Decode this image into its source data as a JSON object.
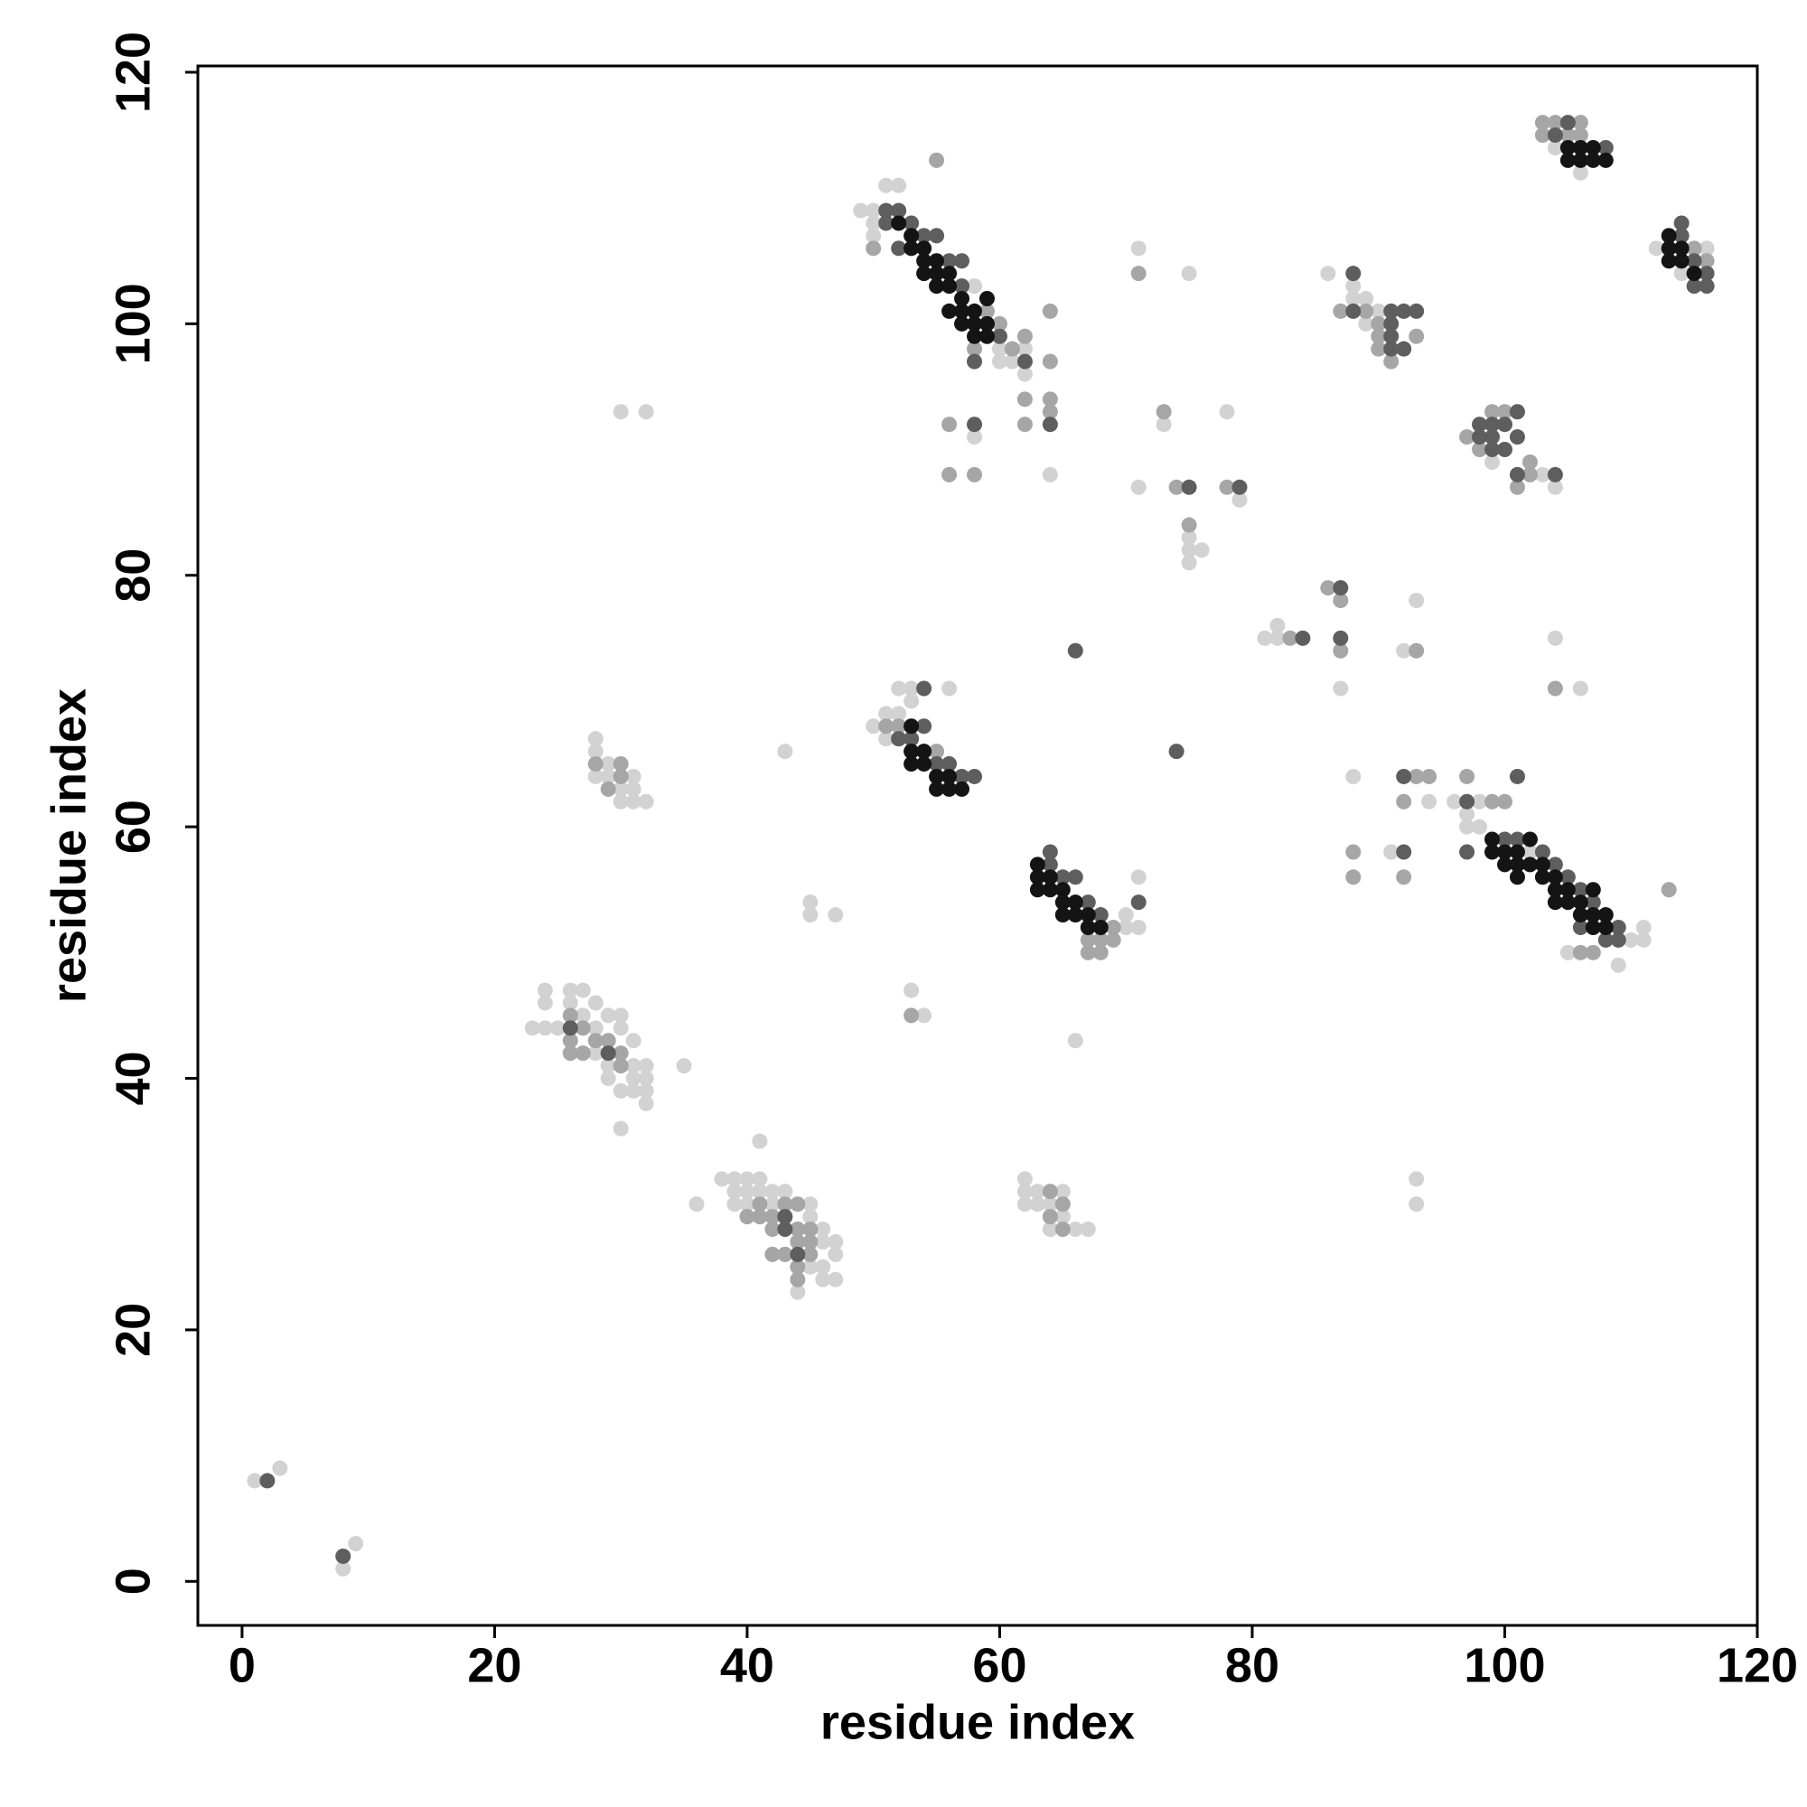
{
  "chart_data": {
    "type": "scatter",
    "xlabel": "residue index",
    "ylabel": "residue index",
    "xlim": [
      -3.5,
      120
    ],
    "ylim": [
      -3.5,
      120.5
    ],
    "xticks": [
      0,
      20,
      40,
      60,
      80,
      100,
      120
    ],
    "yticks": [
      0,
      20,
      40,
      60,
      80,
      100,
      120
    ],
    "series": [
      {
        "color": "#d2d2d2",
        "x": [
          1,
          3,
          8,
          9,
          23,
          24,
          24,
          24,
          25,
          26,
          26,
          27,
          27,
          28,
          28,
          29,
          30,
          30,
          31,
          31,
          32,
          32,
          32,
          32,
          31,
          30,
          29,
          31,
          30,
          35,
          28,
          29,
          38,
          39,
          39,
          40,
          40,
          40,
          41,
          41,
          42,
          42,
          43,
          45,
          45,
          46,
          46,
          46,
          46,
          47,
          47,
          47,
          44,
          41,
          36,
          39,
          45,
          28,
          28,
          28,
          29,
          29,
          30,
          30,
          31,
          31,
          32,
          31,
          30,
          32,
          43,
          45,
          45,
          47,
          53,
          54,
          66,
          50,
          51,
          52,
          53,
          53,
          56,
          52,
          51,
          70,
          71,
          71,
          70,
          62,
          62,
          62,
          63,
          63,
          64,
          65,
          64,
          66,
          67,
          65,
          49,
          50,
          50,
          50,
          51,
          52,
          58,
          58,
          60,
          60,
          61,
          62,
          62,
          64,
          71,
          75,
          71,
          73,
          75,
          75,
          75,
          76,
          78,
          79,
          81,
          82,
          82,
          87,
          92,
          93,
          86,
          88,
          88,
          89,
          89,
          90,
          99,
          103,
          104,
          91,
          88,
          94,
          93,
          93,
          96,
          97,
          97,
          98,
          98,
          102,
          103,
          105,
          110,
          111,
          111,
          109,
          104,
          106,
          116,
          112,
          114,
          104,
          106
        ],
        "values": [
          8,
          9,
          1,
          3,
          44,
          44,
          46,
          47,
          44,
          46,
          47,
          47,
          45,
          46,
          44,
          45,
          45,
          44,
          43,
          41,
          41,
          40,
          39,
          38,
          40,
          39,
          40,
          39,
          36,
          41,
          42,
          41,
          32,
          32,
          31,
          32,
          31,
          30,
          32,
          31,
          31,
          30,
          31,
          30,
          29,
          28,
          27,
          25,
          24,
          27,
          26,
          24,
          23,
          35,
          30,
          30,
          25,
          67,
          66,
          64,
          65,
          64,
          63,
          62,
          62,
          63,
          62,
          64,
          93,
          93,
          66,
          54,
          53,
          53,
          47,
          45,
          43,
          68,
          69,
          71,
          71,
          70,
          71,
          69,
          67,
          53,
          56,
          52,
          52,
          32,
          31,
          30,
          31,
          30,
          30,
          31,
          28,
          28,
          28,
          29,
          109,
          109,
          108,
          107,
          111,
          111,
          103,
          91,
          98,
          97,
          97,
          98,
          96,
          88,
          106,
          104,
          87,
          92,
          83,
          82,
          81,
          82,
          93,
          86,
          75,
          76,
          75,
          71,
          74,
          78,
          104,
          103,
          102,
          102,
          100,
          101,
          89,
          88,
          87,
          58,
          64,
          62,
          32,
          30,
          62,
          61,
          60,
          62,
          60,
          58,
          56,
          50,
          51,
          52,
          51,
          49,
          114,
          112,
          106,
          106,
          104,
          75,
          71
        ]
      },
      {
        "color": "#a6a6a6",
        "x": [
          26,
          26,
          26,
          27,
          28,
          29,
          30,
          30,
          27,
          41,
          41,
          42,
          42,
          43,
          44,
          44,
          44,
          44,
          44,
          45,
          45,
          45,
          42,
          43,
          40,
          28,
          30,
          30,
          29,
          53,
          55,
          51,
          52,
          55,
          67,
          68,
          67,
          68,
          69,
          69,
          64,
          65,
          65,
          64,
          50,
          58,
          59,
          60,
          61,
          62,
          56,
          56,
          58,
          62,
          64,
          64,
          64,
          64,
          62,
          71,
          73,
          74,
          75,
          78,
          83,
          86,
          87,
          87,
          93,
          87,
          89,
          90,
          90,
          91,
          93,
          90,
          97,
          98,
          99,
          100,
          101,
          102,
          102,
          88,
          88,
          92,
          92,
          93,
          94,
          100,
          106,
          107,
          99,
          97,
          113,
          103,
          103,
          104,
          106,
          106,
          105,
          115,
          116,
          104
        ],
        "values": [
          45,
          43,
          42,
          44,
          43,
          43,
          42,
          41,
          42,
          30,
          29,
          29,
          28,
          30,
          30,
          28,
          27,
          25,
          24,
          28,
          27,
          26,
          26,
          26,
          29,
          65,
          65,
          64,
          63,
          45,
          113,
          68,
          68,
          66,
          51,
          51,
          50,
          50,
          52,
          51,
          31,
          30,
          28,
          29,
          106,
          98,
          101,
          100,
          98,
          99,
          92,
          88,
          88,
          92,
          101,
          97,
          94,
          93,
          94,
          104,
          93,
          87,
          84,
          87,
          75,
          79,
          78,
          74,
          74,
          101,
          101,
          100,
          99,
          97,
          99,
          98,
          91,
          90,
          93,
          93,
          87,
          88,
          89,
          58,
          56,
          56,
          62,
          64,
          64,
          62,
          50,
          50,
          62,
          64,
          55,
          116,
          115,
          116,
          116,
          115,
          115,
          106,
          105,
          71
        ]
      },
      {
        "color": "#5e5e5e",
        "x": [
          2,
          8,
          26,
          29,
          43,
          44,
          43,
          66,
          74,
          54,
          53,
          54,
          55,
          56,
          57,
          58,
          52,
          64,
          64,
          65,
          66,
          67,
          68,
          71,
          51,
          51,
          52,
          52,
          53,
          54,
          55,
          56,
          57,
          57,
          58,
          60,
          58,
          62,
          64,
          75,
          79,
          84,
          87,
          87,
          88,
          88,
          91,
          91,
          92,
          93,
          91,
          92,
          91,
          98,
          98,
          99,
          99,
          100,
          100,
          101,
          101,
          99,
          101,
          104,
          92,
          92,
          97,
          97,
          100,
          101,
          101,
          103,
          104,
          105,
          106,
          106,
          107,
          108,
          109,
          109,
          108,
          104,
          105,
          116,
          114,
          114,
          115,
          116,
          115
        ],
        "values": [
          8,
          2,
          44,
          42,
          29,
          26,
          28,
          74,
          66,
          71,
          67,
          68,
          65,
          65,
          64,
          64,
          67,
          58,
          57,
          56,
          56,
          54,
          53,
          54,
          109,
          108,
          109,
          106,
          108,
          107,
          107,
          105,
          105,
          103,
          97,
          99,
          92,
          97,
          92,
          87,
          87,
          75,
          79,
          75,
          104,
          101,
          101,
          100,
          101,
          101,
          99,
          98,
          98,
          92,
          91,
          92,
          91,
          92,
          90,
          93,
          91,
          90,
          88,
          88,
          58,
          64,
          62,
          58,
          59,
          59,
          64,
          58,
          57,
          56,
          55,
          52,
          54,
          51,
          51,
          52,
          114,
          115,
          116,
          103,
          108,
          107,
          105,
          104,
          103
        ]
      },
      {
        "color": "#141414",
        "x": [
          53,
          53,
          54,
          54,
          55,
          55,
          56,
          56,
          57,
          53,
          63,
          63,
          63,
          64,
          64,
          65,
          65,
          66,
          66,
          67,
          67,
          68,
          65,
          52,
          53,
          53,
          54,
          54,
          54,
          55,
          55,
          55,
          56,
          56,
          56,
          57,
          57,
          57,
          58,
          58,
          58,
          59,
          59,
          59,
          99,
          99,
          100,
          100,
          101,
          101,
          101,
          102,
          102,
          103,
          103,
          104,
          104,
          104,
          105,
          105,
          106,
          106,
          107,
          107,
          107,
          108,
          108,
          105,
          105,
          106,
          106,
          107,
          108,
          107,
          113,
          113,
          113,
          114,
          114,
          115
        ],
        "values": [
          66,
          65,
          66,
          65,
          64,
          63,
          64,
          63,
          63,
          68,
          57,
          56,
          55,
          56,
          55,
          55,
          54,
          54,
          53,
          53,
          52,
          52,
          53,
          108,
          107,
          106,
          106,
          105,
          104,
          105,
          104,
          103,
          104,
          103,
          101,
          102,
          101,
          100,
          101,
          100,
          99,
          102,
          100,
          99,
          59,
          58,
          58,
          57,
          58,
          57,
          56,
          59,
          57,
          57,
          56,
          56,
          55,
          54,
          55,
          54,
          54,
          53,
          55,
          53,
          52,
          53,
          52,
          114,
          113,
          114,
          113,
          114,
          113,
          113,
          107,
          106,
          105,
          106,
          105,
          104
        ]
      }
    ]
  }
}
